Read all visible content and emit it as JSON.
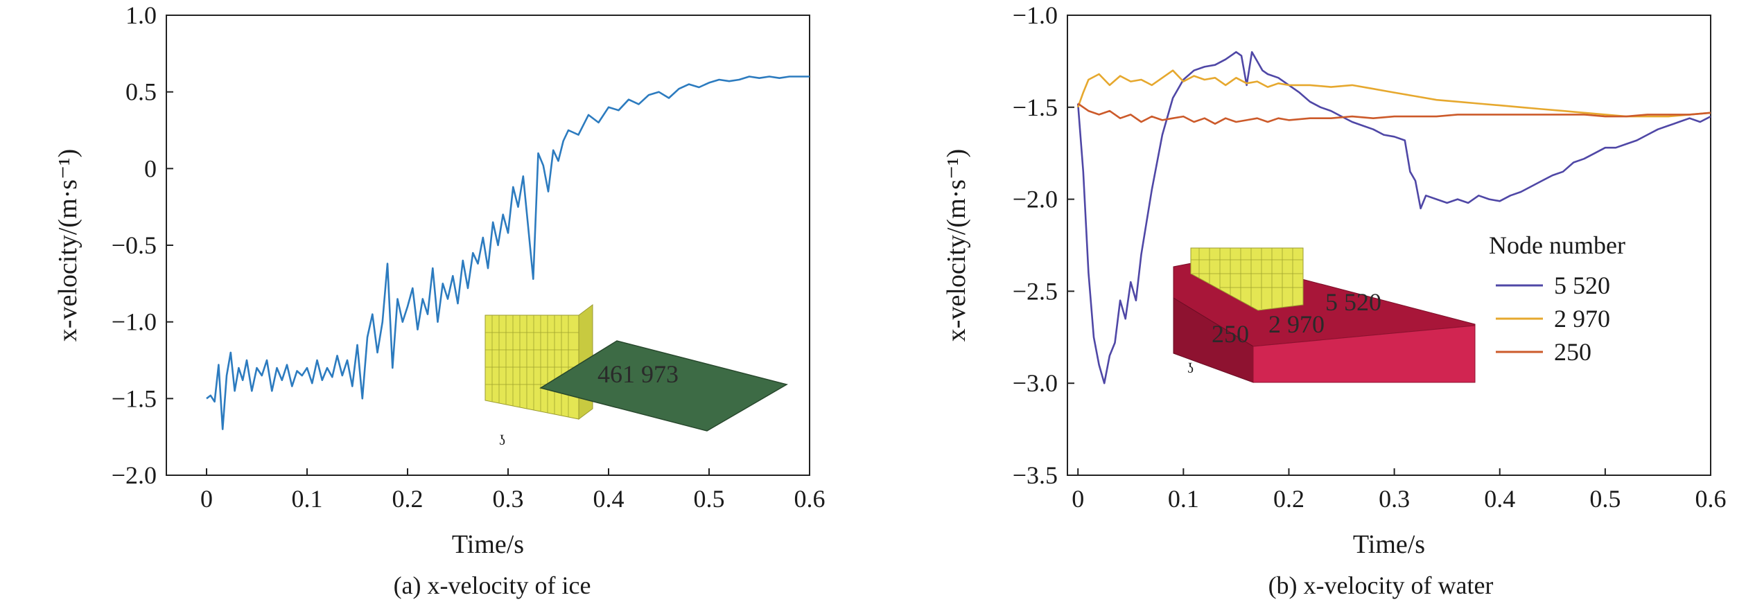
{
  "chart_data": [
    {
      "type": "line",
      "caption": "(a) x-velocity of ice",
      "xlabel": "Time/s",
      "ylabel": "x-velocity/(m·s⁻¹)",
      "xlim": [
        -0.04,
        0.6
      ],
      "ylim": [
        -2.0,
        1.0
      ],
      "xticks": [
        "0",
        "0.1",
        "0.2",
        "0.3",
        "0.4",
        "0.5",
        "0.6"
      ],
      "yticks": [
        "1.0",
        "0.5",
        "0",
        "−0.5",
        "−1.0",
        "−1.5",
        "−2.0"
      ],
      "grid": false,
      "inset_label": "461 973",
      "colors": {
        "line": "#2c7bbf",
        "plate": "#3d6b45",
        "structure": "#e6e85a"
      },
      "series": [
        {
          "x": [
            0,
            0.004,
            0.008,
            0.012,
            0.016,
            0.02,
            0.024,
            0.028,
            0.032,
            0.036,
            0.04,
            0.045,
            0.05,
            0.055,
            0.06,
            0.065,
            0.07,
            0.075,
            0.08,
            0.085,
            0.09,
            0.095,
            0.1,
            0.105,
            0.11,
            0.115,
            0.12,
            0.125,
            0.13,
            0.135,
            0.14,
            0.145,
            0.15,
            0.155,
            0.16,
            0.165,
            0.17,
            0.175,
            0.18,
            0.185,
            0.19,
            0.195,
            0.2,
            0.205,
            0.21,
            0.215,
            0.22,
            0.225,
            0.23,
            0.235,
            0.24,
            0.245,
            0.25,
            0.255,
            0.26,
            0.265,
            0.27,
            0.275,
            0.28,
            0.285,
            0.29,
            0.295,
            0.3,
            0.305,
            0.31,
            0.315,
            0.32,
            0.325,
            0.33,
            0.335,
            0.34,
            0.345,
            0.35,
            0.355,
            0.36,
            0.37,
            0.38,
            0.39,
            0.4,
            0.41,
            0.42,
            0.43,
            0.44,
            0.45,
            0.46,
            0.47,
            0.48,
            0.49,
            0.5,
            0.51,
            0.52,
            0.53,
            0.54,
            0.55,
            0.56,
            0.57,
            0.58,
            0.59,
            0.6
          ],
          "y": [
            -1.5,
            -1.48,
            -1.52,
            -1.28,
            -1.7,
            -1.35,
            -1.2,
            -1.45,
            -1.3,
            -1.38,
            -1.25,
            -1.45,
            -1.3,
            -1.35,
            -1.25,
            -1.45,
            -1.3,
            -1.38,
            -1.28,
            -1.42,
            -1.32,
            -1.35,
            -1.3,
            -1.4,
            -1.25,
            -1.38,
            -1.3,
            -1.36,
            -1.22,
            -1.35,
            -1.25,
            -1.42,
            -1.15,
            -1.5,
            -1.1,
            -0.95,
            -1.2,
            -1.0,
            -0.62,
            -1.3,
            -0.85,
            -1.0,
            -0.9,
            -0.78,
            -1.05,
            -0.85,
            -0.95,
            -0.65,
            -1.0,
            -0.75,
            -0.85,
            -0.7,
            -0.88,
            -0.6,
            -0.78,
            -0.55,
            -0.62,
            -0.45,
            -0.65,
            -0.35,
            -0.5,
            -0.3,
            -0.42,
            -0.12,
            -0.25,
            -0.05,
            -0.38,
            -0.72,
            0.1,
            0.02,
            -0.15,
            0.12,
            0.05,
            0.18,
            0.25,
            0.22,
            0.35,
            0.3,
            0.4,
            0.38,
            0.45,
            0.42,
            0.48,
            0.5,
            0.46,
            0.52,
            0.55,
            0.53,
            0.56,
            0.58,
            0.57,
            0.58,
            0.6,
            0.59,
            0.6,
            0.59,
            0.6,
            0.6,
            0.6
          ]
        }
      ]
    },
    {
      "type": "line",
      "caption": "(b) x-velocity of water",
      "xlabel": "Time/s",
      "ylabel": "x-velocity/(m·s⁻¹)",
      "xlim": [
        -0.01,
        0.6
      ],
      "ylim": [
        -3.5,
        -1.0
      ],
      "xticks": [
        "0",
        "0.1",
        "0.2",
        "0.3",
        "0.4",
        "0.5",
        "0.6"
      ],
      "yticks": [
        "−1.0",
        "−1.5",
        "−2.0",
        "−2.5",
        "−3.0",
        "−3.5"
      ],
      "grid": false,
      "legend_title": "Node number",
      "legend_position": "right",
      "inset_labels": [
        "5 520",
        "2 970",
        "250"
      ],
      "colors": {
        "tank": "#b8183f",
        "tank_dark": "#8e1230",
        "structure": "#e6e85a"
      },
      "series": [
        {
          "name": "5 520",
          "color": "#4f47a6",
          "x": [
            0,
            0.005,
            0.01,
            0.015,
            0.02,
            0.025,
            0.03,
            0.035,
            0.04,
            0.045,
            0.05,
            0.055,
            0.06,
            0.07,
            0.08,
            0.09,
            0.1,
            0.11,
            0.12,
            0.13,
            0.14,
            0.15,
            0.155,
            0.16,
            0.165,
            0.17,
            0.175,
            0.18,
            0.19,
            0.2,
            0.21,
            0.22,
            0.23,
            0.24,
            0.25,
            0.26,
            0.27,
            0.28,
            0.29,
            0.3,
            0.31,
            0.315,
            0.32,
            0.325,
            0.33,
            0.34,
            0.35,
            0.36,
            0.37,
            0.38,
            0.39,
            0.4,
            0.41,
            0.42,
            0.43,
            0.44,
            0.45,
            0.46,
            0.47,
            0.48,
            0.49,
            0.5,
            0.51,
            0.52,
            0.53,
            0.54,
            0.55,
            0.56,
            0.57,
            0.58,
            0.59,
            0.6
          ],
          "y": [
            -1.48,
            -1.85,
            -2.4,
            -2.75,
            -2.9,
            -3.0,
            -2.85,
            -2.78,
            -2.55,
            -2.65,
            -2.45,
            -2.55,
            -2.3,
            -1.95,
            -1.65,
            -1.45,
            -1.35,
            -1.3,
            -1.28,
            -1.27,
            -1.24,
            -1.2,
            -1.22,
            -1.38,
            -1.2,
            -1.25,
            -1.3,
            -1.32,
            -1.34,
            -1.38,
            -1.42,
            -1.47,
            -1.5,
            -1.52,
            -1.55,
            -1.58,
            -1.6,
            -1.62,
            -1.65,
            -1.66,
            -1.68,
            -1.85,
            -1.9,
            -2.05,
            -1.98,
            -2.0,
            -2.02,
            -2.0,
            -2.02,
            -1.98,
            -2.0,
            -2.01,
            -1.98,
            -1.96,
            -1.93,
            -1.9,
            -1.87,
            -1.85,
            -1.8,
            -1.78,
            -1.75,
            -1.72,
            -1.72,
            -1.7,
            -1.68,
            -1.65,
            -1.62,
            -1.6,
            -1.58,
            -1.56,
            -1.58,
            -1.55
          ]
        },
        {
          "name": "2 970",
          "color": "#e6a82e",
          "x": [
            0,
            0.005,
            0.01,
            0.02,
            0.03,
            0.04,
            0.05,
            0.06,
            0.07,
            0.08,
            0.09,
            0.1,
            0.11,
            0.12,
            0.13,
            0.14,
            0.15,
            0.16,
            0.17,
            0.18,
            0.19,
            0.2,
            0.22,
            0.24,
            0.26,
            0.28,
            0.3,
            0.32,
            0.34,
            0.36,
            0.38,
            0.4,
            0.42,
            0.44,
            0.46,
            0.48,
            0.5,
            0.52,
            0.54,
            0.56,
            0.58,
            0.6
          ],
          "y": [
            -1.5,
            -1.42,
            -1.35,
            -1.32,
            -1.38,
            -1.33,
            -1.36,
            -1.35,
            -1.38,
            -1.34,
            -1.3,
            -1.36,
            -1.33,
            -1.35,
            -1.34,
            -1.38,
            -1.34,
            -1.37,
            -1.36,
            -1.39,
            -1.37,
            -1.38,
            -1.38,
            -1.39,
            -1.38,
            -1.4,
            -1.42,
            -1.44,
            -1.46,
            -1.47,
            -1.48,
            -1.49,
            -1.5,
            -1.51,
            -1.52,
            -1.53,
            -1.54,
            -1.55,
            -1.55,
            -1.55,
            -1.54,
            -1.53
          ]
        },
        {
          "name": "250",
          "color": "#cc5a2a",
          "x": [
            0,
            0.005,
            0.01,
            0.02,
            0.03,
            0.04,
            0.05,
            0.06,
            0.07,
            0.08,
            0.09,
            0.1,
            0.11,
            0.12,
            0.13,
            0.14,
            0.15,
            0.16,
            0.17,
            0.18,
            0.19,
            0.2,
            0.22,
            0.24,
            0.26,
            0.28,
            0.3,
            0.32,
            0.34,
            0.36,
            0.38,
            0.4,
            0.42,
            0.44,
            0.46,
            0.48,
            0.5,
            0.52,
            0.54,
            0.56,
            0.58,
            0.6
          ],
          "y": [
            -1.48,
            -1.5,
            -1.52,
            -1.54,
            -1.52,
            -1.56,
            -1.54,
            -1.58,
            -1.55,
            -1.57,
            -1.56,
            -1.55,
            -1.58,
            -1.56,
            -1.59,
            -1.56,
            -1.58,
            -1.57,
            -1.56,
            -1.58,
            -1.56,
            -1.57,
            -1.56,
            -1.56,
            -1.55,
            -1.56,
            -1.55,
            -1.55,
            -1.55,
            -1.54,
            -1.54,
            -1.54,
            -1.54,
            -1.54,
            -1.54,
            -1.54,
            -1.55,
            -1.55,
            -1.54,
            -1.54,
            -1.54,
            -1.53
          ]
        }
      ]
    }
  ]
}
